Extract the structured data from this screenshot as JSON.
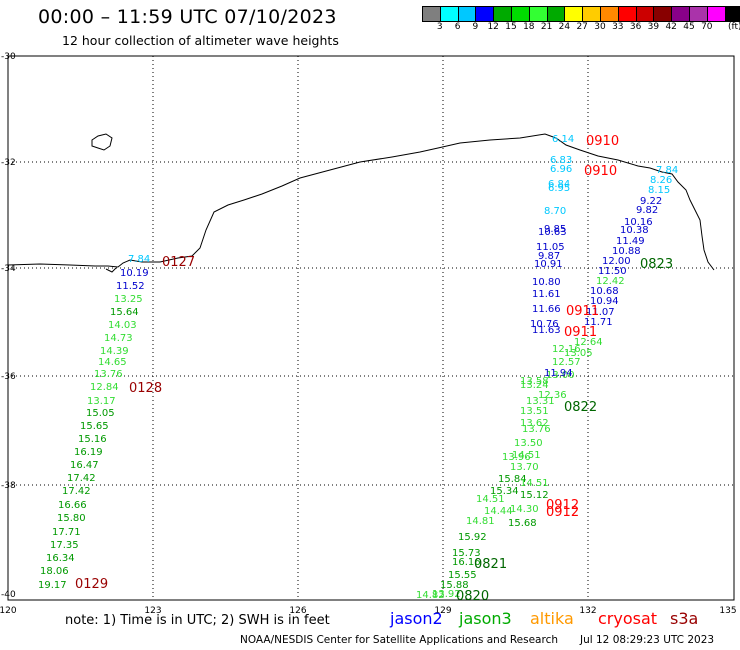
{
  "header": {
    "title": "00:00 – 11:59 UTC 07/10/2023",
    "subtitle": "12 hour collection of altimeter wave heights"
  },
  "colorbar": {
    "colors": [
      "#7f7f7f",
      "#00ffff",
      "#00c8ff",
      "#0000ff",
      "#00aa00",
      "#00dd00",
      "#33ff33",
      "#00aa00",
      "#ffff00",
      "#ffcc00",
      "#ff8800",
      "#ff0000",
      "#cc0000",
      "#880000",
      "#880088",
      "#aa33aa",
      "#ff00ff",
      "#000000"
    ],
    "labels": [
      "3",
      "6",
      "9",
      "12",
      "15",
      "18",
      "21",
      "24",
      "27",
      "30",
      "33",
      "36",
      "39",
      "42",
      "45",
      "70"
    ],
    "unit": "(ft)"
  },
  "axes": {
    "x_ticks": [
      "120",
      "123",
      "126",
      "129",
      "132",
      "135"
    ],
    "y_ticks": [
      "-30",
      "-32",
      "-34",
      "-36",
      "-38",
      "-40"
    ]
  },
  "passes": [
    {
      "label": "0127",
      "color": "#990000"
    },
    {
      "label": "0128",
      "color": "#990000"
    },
    {
      "label": "0129",
      "color": "#990000"
    },
    {
      "label": "0910",
      "color": "#ff0000"
    },
    {
      "label": "0910",
      "color": "#ff0000"
    },
    {
      "label": "0911",
      "color": "#ff0000"
    },
    {
      "label": "0911",
      "color": "#ff0000"
    },
    {
      "label": "0912",
      "color": "#ff0000"
    },
    {
      "label": "0912",
      "color": "#ff0000"
    },
    {
      "label": "0823",
      "color": "#006600"
    },
    {
      "label": "0822",
      "color": "#006600"
    },
    {
      "label": "0821",
      "color": "#006600"
    },
    {
      "label": "0820",
      "color": "#006600"
    }
  ],
  "wave_heights": [
    {
      "v": "7.84",
      "c": "#00c8ff"
    },
    {
      "v": "10.19",
      "c": "#0000cc"
    },
    {
      "v": "11.52",
      "c": "#0000cc"
    },
    {
      "v": "13.25",
      "c": "#33dd33"
    },
    {
      "v": "15.64",
      "c": "#009900"
    },
    {
      "v": "14.03",
      "c": "#33dd33"
    },
    {
      "v": "14.73",
      "c": "#33dd33"
    },
    {
      "v": "14.39",
      "c": "#33dd33"
    },
    {
      "v": "14.65",
      "c": "#33dd33"
    },
    {
      "v": "13.76",
      "c": "#33dd33"
    },
    {
      "v": "12.84",
      "c": "#33dd33"
    },
    {
      "v": "13.17",
      "c": "#33dd33"
    },
    {
      "v": "15.05",
      "c": "#009900"
    },
    {
      "v": "15.65",
      "c": "#009900"
    },
    {
      "v": "15.16",
      "c": "#009900"
    },
    {
      "v": "16.19",
      "c": "#009900"
    },
    {
      "v": "16.47",
      "c": "#009900"
    },
    {
      "v": "17.42",
      "c": "#009900"
    },
    {
      "v": "17.42",
      "c": "#009900"
    },
    {
      "v": "16.66",
      "c": "#009900"
    },
    {
      "v": "15.80",
      "c": "#009900"
    },
    {
      "v": "17.71",
      "c": "#009900"
    },
    {
      "v": "17.35",
      "c": "#009900"
    },
    {
      "v": "16.34",
      "c": "#009900"
    },
    {
      "v": "18.06",
      "c": "#009900"
    },
    {
      "v": "19.17",
      "c": "#009900"
    },
    {
      "v": "6.14",
      "c": "#00c8ff"
    },
    {
      "v": "6.83",
      "c": "#00c8ff"
    },
    {
      "v": "6.96",
      "c": "#00c8ff"
    },
    {
      "v": "6.84",
      "c": "#00c8ff"
    },
    {
      "v": "6.95",
      "c": "#00c8ff"
    },
    {
      "v": "8.70",
      "c": "#00c8ff"
    },
    {
      "v": "9.85",
      "c": "#0000cc"
    },
    {
      "v": "10.63",
      "c": "#0000cc"
    },
    {
      "v": "11.05",
      "c": "#0000cc"
    },
    {
      "v": "9.87",
      "c": "#0000cc"
    },
    {
      "v": "10.91",
      "c": "#0000cc"
    },
    {
      "v": "10.80",
      "c": "#0000cc"
    },
    {
      "v": "11.61",
      "c": "#0000cc"
    },
    {
      "v": "11.66",
      "c": "#0000cc"
    },
    {
      "v": "10.76",
      "c": "#0000cc"
    },
    {
      "v": "11.63",
      "c": "#0000cc"
    },
    {
      "v": "7.84",
      "c": "#00c8ff"
    },
    {
      "v": "8.26",
      "c": "#00c8ff"
    },
    {
      "v": "8.15",
      "c": "#00c8ff"
    },
    {
      "v": "9.22",
      "c": "#0000cc"
    },
    {
      "v": "9.82",
      "c": "#0000cc"
    },
    {
      "v": "10.16",
      "c": "#0000cc"
    },
    {
      "v": "10.38",
      "c": "#0000cc"
    },
    {
      "v": "11.49",
      "c": "#0000cc"
    },
    {
      "v": "10.88",
      "c": "#0000cc"
    },
    {
      "v": "12.00",
      "c": "#0000cc"
    },
    {
      "v": "11.50",
      "c": "#0000cc"
    },
    {
      "v": "12.42",
      "c": "#33dd33"
    },
    {
      "v": "10.68",
      "c": "#0000cc"
    },
    {
      "v": "10.94",
      "c": "#0000cc"
    },
    {
      "v": "11.07",
      "c": "#0000cc"
    },
    {
      "v": "11.71",
      "c": "#0000cc"
    },
    {
      "v": "12.64",
      "c": "#33dd33"
    },
    {
      "v": "13.05",
      "c": "#33dd33"
    },
    {
      "v": "12.16",
      "c": "#33dd33"
    },
    {
      "v": "12.57",
      "c": "#33dd33"
    },
    {
      "v": "13.00",
      "c": "#33dd33"
    },
    {
      "v": "11.94",
      "c": "#0000cc"
    },
    {
      "v": "13.58",
      "c": "#33dd33"
    },
    {
      "v": "13.24",
      "c": "#33dd33"
    },
    {
      "v": "12.36",
      "c": "#33dd33"
    },
    {
      "v": "13.31",
      "c": "#33dd33"
    },
    {
      "v": "13.51",
      "c": "#33dd33"
    },
    {
      "v": "13.62",
      "c": "#33dd33"
    },
    {
      "v": "13.76",
      "c": "#33dd33"
    },
    {
      "v": "13.50",
      "c": "#33dd33"
    },
    {
      "v": "13.96",
      "c": "#33dd33"
    },
    {
      "v": "14.51",
      "c": "#33dd33"
    },
    {
      "v": "13.70",
      "c": "#33dd33"
    },
    {
      "v": "15.84",
      "c": "#009900"
    },
    {
      "v": "15.34",
      "c": "#009900"
    },
    {
      "v": "14.44",
      "c": "#33dd33"
    },
    {
      "v": "14.51",
      "c": "#33dd33"
    },
    {
      "v": "14.81",
      "c": "#33dd33"
    },
    {
      "v": "15.92",
      "c": "#009900"
    },
    {
      "v": "15.73",
      "c": "#009900"
    },
    {
      "v": "16.16",
      "c": "#009900"
    },
    {
      "v": "15.55",
      "c": "#009900"
    },
    {
      "v": "15.88",
      "c": "#009900"
    },
    {
      "v": "13.92",
      "c": "#33dd33"
    },
    {
      "v": "14.82",
      "c": "#33dd33"
    },
    {
      "v": "14.51",
      "c": "#33dd33"
    },
    {
      "v": "15.12",
      "c": "#009900"
    },
    {
      "v": "14.30",
      "c": "#33dd33"
    },
    {
      "v": "15.68",
      "c": "#009900"
    }
  ],
  "footer": {
    "note": "note:  1) Time is in UTC; 2) SWH is in feet",
    "legend": [
      {
        "name": "jason2",
        "color": "#0000ff"
      },
      {
        "name": "jason3",
        "color": "#00aa00"
      },
      {
        "name": "altika",
        "color": "#ff9900"
      },
      {
        "name": "cryosat",
        "color": "#ff0000"
      },
      {
        "name": "s3a",
        "color": "#990000"
      }
    ],
    "credit": "NOAA/NESDIS Center for Satellite Applications and Research",
    "generated": "Jul 12 08:29:23 UTC 2023"
  }
}
